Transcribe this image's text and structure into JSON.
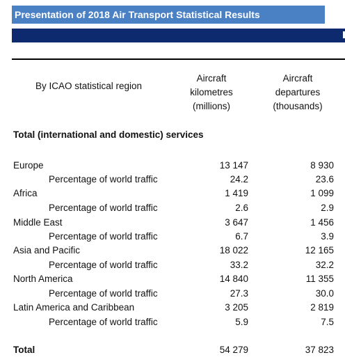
{
  "title": "Presentation of 2018 Air Transport Statistical Results",
  "header": {
    "region": "By ICAO statistical region",
    "col1": [
      "Aircraft",
      "kilometres",
      "(millions)"
    ],
    "col2": [
      "Aircraft",
      "departures",
      "(thousands)"
    ]
  },
  "section_title": "Total (international and domestic) services",
  "rows": [
    {
      "label": "Europe",
      "v1": "13 147",
      "v2": "8 930"
    },
    {
      "label": "Percentage of world traffic",
      "v1": "24.2",
      "v2": "23.6"
    },
    {
      "label": "Africa",
      "v1": "1 419",
      "v2": "1 099"
    },
    {
      "label": "Percentage of world traffic",
      "v1": "2.6",
      "v2": "2.9"
    },
    {
      "label": "Middle East",
      "v1": "3 647",
      "v2": "1 456"
    },
    {
      "label": "Percentage of world traffic",
      "v1": "6.7",
      "v2": "3.9"
    },
    {
      "label": "Asia and Pacific",
      "v1": "18 022",
      "v2": "12 165"
    },
    {
      "label": "Percentage of world traffic",
      "v1": "33.2",
      "v2": "32.2"
    },
    {
      "label": "North America",
      "v1": "14 840",
      "v2": "11 355"
    },
    {
      "label": "Percentage of world traffic",
      "v1": "27.3",
      "v2": "30.0"
    },
    {
      "label": "Latin America and Caribbean",
      "v1": "3 205",
      "v2": "2 819"
    },
    {
      "label": "Percentage of world traffic",
      "v1": "5.9",
      "v2": "7.5"
    }
  ],
  "total": {
    "label": "Total",
    "v1": "54 279",
    "v2": "37 823"
  },
  "colors": {
    "title_bar": "#4a81c4",
    "navy_bar": "#0e2a6e"
  }
}
